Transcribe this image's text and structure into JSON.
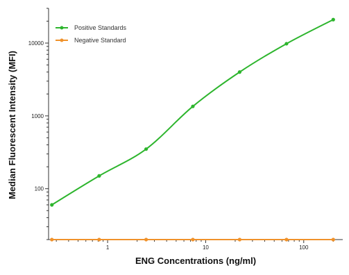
{
  "chart_data": {
    "type": "scatter",
    "xlabel": "ENG Concentrations (ng/ml)",
    "ylabel": "Median Fluorescent Intensity (MFI)",
    "x_scale": "log",
    "y_scale": "log",
    "xlim": [
      0.25,
      250
    ],
    "ylim": [
      20,
      30000
    ],
    "x_ticks": [
      {
        "value": 1,
        "label": "1"
      },
      {
        "value": 10,
        "label": "10"
      },
      {
        "value": 100,
        "label": "100"
      }
    ],
    "y_ticks": [
      {
        "value": 100,
        "label": "100"
      },
      {
        "value": 1000,
        "label": "1000"
      },
      {
        "value": 10000,
        "label": "10000"
      }
    ],
    "grid": false,
    "legend_position": "top-left",
    "series": [
      {
        "name": "Positive Standards",
        "color": "#2db52d",
        "marker": "circle",
        "fit_curve": true,
        "points": [
          {
            "x": 0.27,
            "y": 60
          },
          {
            "x": 0.82,
            "y": 150
          },
          {
            "x": 2.47,
            "y": 350
          },
          {
            "x": 7.4,
            "y": 1350
          },
          {
            "x": 22.2,
            "y": 4000
          },
          {
            "x": 66.7,
            "y": 9800
          },
          {
            "x": 200,
            "y": 21000
          }
        ]
      },
      {
        "name": "Negative Standard",
        "color": "#f0922b",
        "marker": "circle",
        "fit_curve": false,
        "points": [
          {
            "x": 0.27,
            "y": 20
          },
          {
            "x": 0.82,
            "y": 20
          },
          {
            "x": 2.47,
            "y": 20
          },
          {
            "x": 7.4,
            "y": 20
          },
          {
            "x": 22.2,
            "y": 20
          },
          {
            "x": 66.7,
            "y": 20
          },
          {
            "x": 200,
            "y": 20
          }
        ]
      }
    ]
  }
}
